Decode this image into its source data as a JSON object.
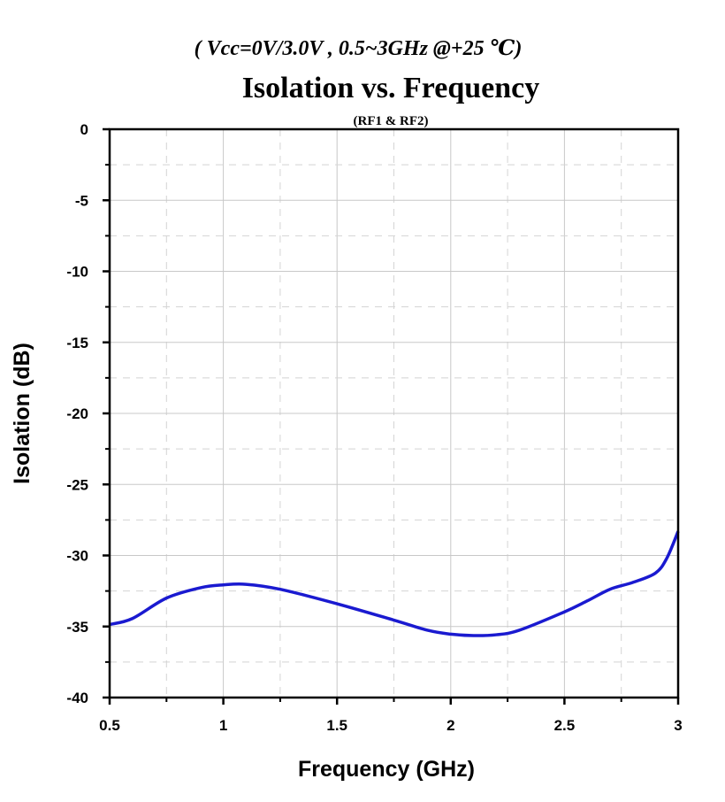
{
  "chart_data": {
    "type": "line",
    "subtitle_top": "( Vcc=0V/3.0V , 0.5~3GHz @+25 ℃)",
    "title": "Isolation vs. Frequency",
    "subtitle": "(RF1 & RF2)",
    "xlabel": "Frequency (GHz)",
    "ylabel": "Isolation (dB)",
    "xlim": [
      0.5,
      3
    ],
    "ylim": [
      -40,
      0
    ],
    "xticks": [
      "0.5",
      "1",
      "1.5",
      "2",
      "2.5",
      "3"
    ],
    "yticks": [
      "0",
      "-5",
      "-10",
      "-15",
      "-20",
      "-25",
      "-30",
      "-35",
      "-40"
    ],
    "grid": true,
    "line_color": "#1a1ad0",
    "series": [
      {
        "name": "Isolation",
        "x": [
          0.5,
          0.6,
          0.75,
          0.9,
          1.0,
          1.1,
          1.25,
          1.5,
          1.75,
          1.9,
          2.0,
          2.1,
          2.2,
          2.3,
          2.5,
          2.6,
          2.7,
          2.8,
          2.9,
          2.95,
          3.0
        ],
        "y": [
          -34.86,
          -34.44,
          -33.0,
          -32.27,
          -32.07,
          -32.03,
          -32.38,
          -33.4,
          -34.55,
          -35.27,
          -35.54,
          -35.64,
          -35.58,
          -35.27,
          -33.97,
          -33.2,
          -32.38,
          -31.9,
          -31.24,
          -30.2,
          -28.3
        ]
      }
    ]
  }
}
